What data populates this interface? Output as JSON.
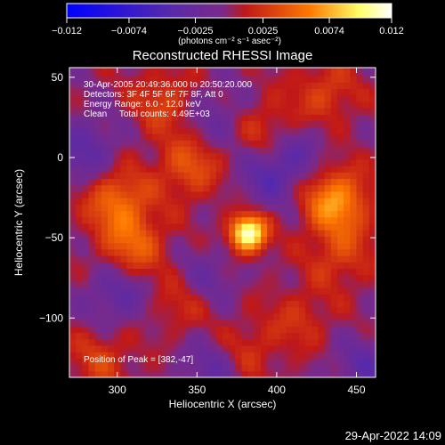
{
  "chart_data": {
    "type": "heatmap",
    "title": "Reconstructed RHESSI Image",
    "xlabel": "Heliocentric X (arcsec)",
    "ylabel": "Heliocentric Y (arcsec)",
    "xlim": [
      270,
      462
    ],
    "ylim": [
      -137,
      56
    ],
    "xticks": [
      300,
      350,
      400,
      450
    ],
    "yticks": [
      50,
      0,
      -50,
      -100
    ],
    "colorbar": {
      "range": [
        -0.012,
        0.012
      ],
      "ticks": [
        "-0.012",
        "-0.0074",
        "-0.0025",
        "0.0025",
        "0.0074",
        "0.012"
      ],
      "label": "(photons cm⁻² s⁻¹ asec⁻²)",
      "colors": [
        "#0000ff",
        "#5a2aa8",
        "#7a2a8a",
        "#c01818",
        "#ff7a00",
        "#ffff66",
        "#ffffff"
      ]
    },
    "annotations": [
      "30-Apr-2005 20:49:36.000 to 20:50:20.000",
      "Detectors: 3F 4F 5F 6F 7F 8F, Att 0",
      "Energy Range: 6.0 - 12.0 keV",
      "Clean     Total counts: 4.49E+03"
    ],
    "peak_label": "Position of Peak = [382,-47]",
    "peak": [
      382,
      -47
    ],
    "features": [
      {
        "x": 382,
        "y": -47,
        "value": 0.0118
      },
      {
        "x": 437,
        "y": -27,
        "value": 0.0068
      },
      {
        "x": 300,
        "y": -27,
        "value": 0.005
      },
      {
        "x": 310,
        "y": -55,
        "value": 0.0045
      },
      {
        "x": 345,
        "y": -5,
        "value": 0.004
      },
      {
        "x": 395,
        "y": 15,
        "value": 0.0035
      },
      {
        "x": 330,
        "y": 35,
        "value": 0.0032
      },
      {
        "x": 430,
        "y": 40,
        "value": 0.003
      },
      {
        "x": 440,
        "y": -60,
        "value": 0.003
      },
      {
        "x": 290,
        "y": -125,
        "value": 0.0028
      },
      {
        "x": 380,
        "y": -120,
        "value": 0.0025
      },
      {
        "x": 340,
        "y": -90,
        "value": 0.0025
      },
      {
        "x": 415,
        "y": -100,
        "value": 0.0022
      },
      {
        "x": 280,
        "y": 5,
        "value": -0.0035
      },
      {
        "x": 360,
        "y": 25,
        "value": -0.0025
      },
      {
        "x": 395,
        "y": -10,
        "value": -0.0035
      },
      {
        "x": 410,
        "y": 5,
        "value": -0.003
      },
      {
        "x": 300,
        "y": -85,
        "value": -0.0035
      },
      {
        "x": 355,
        "y": -75,
        "value": -0.0025
      },
      {
        "x": 360,
        "y": -130,
        "value": -0.003
      },
      {
        "x": 455,
        "y": -130,
        "value": -0.003
      }
    ]
  },
  "footer": {
    "date": "29-Apr-2022 14:09"
  }
}
